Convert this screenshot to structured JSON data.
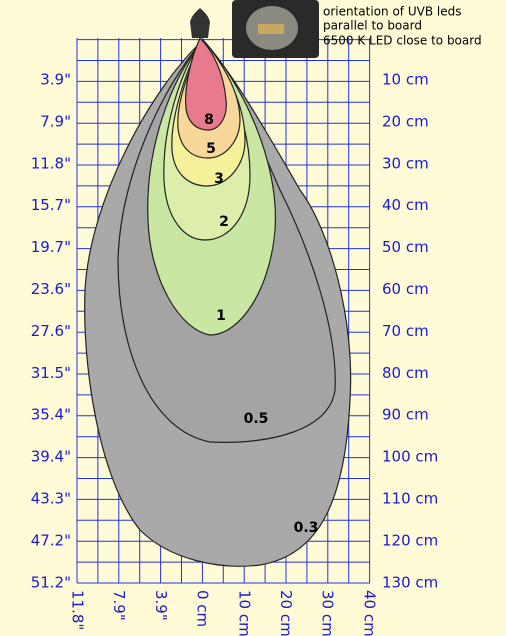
{
  "caption": [
    "orientation of UVB leds",
    "parallel to board",
    "6500 K LED close to board"
  ],
  "left_labels": [
    "3.9\"",
    "7.9\"",
    "11.8\"",
    "15.7\"",
    "19.7\"",
    "23.6\"",
    "27.6\"",
    "31.5\"",
    "35.4\"",
    "39.4\"",
    "43.3\"",
    "47.2\"",
    "51.2\""
  ],
  "right_labels": [
    "10 cm",
    "20 cm",
    "30 cm",
    "40 cm",
    "50 cm",
    "60 cm",
    "70 cm",
    "80 cm",
    "90 cm",
    "100 cm",
    "110 cm",
    "120 cm",
    "130 cm"
  ],
  "bottom_labels": [
    "11.8\"",
    "7.9\"",
    "3.9\"",
    "0 cm",
    "10 cm",
    "20 cm",
    "30 cm",
    "40 cm"
  ],
  "contour_labels": [
    "8",
    "5",
    "3",
    "2",
    "1",
    "0.5",
    "0.3"
  ]
}
